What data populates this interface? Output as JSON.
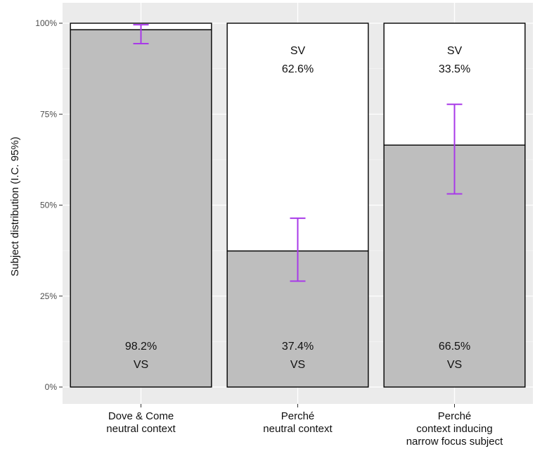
{
  "chart_data": {
    "type": "bar",
    "stacked": true,
    "ylabel": "Subject distribution (I.C. 95%)",
    "xlabel": "",
    "ylim": [
      0,
      100
    ],
    "yticks": [
      "0%",
      "25%",
      "50%",
      "75%",
      "100%"
    ],
    "ytick_values": [
      0,
      25,
      50,
      75,
      100
    ],
    "grid": true,
    "categories": [
      [
        "Dove & Come",
        "neutral context"
      ],
      [
        "Perché",
        "neutral context"
      ],
      [
        "Perché",
        "context inducing",
        "narrow focus subject"
      ]
    ],
    "series": [
      {
        "name": "VS",
        "color": "#bebebe",
        "values": [
          98.2,
          37.4,
          66.5
        ],
        "labels": [
          "98.2%",
          "37.4%",
          "66.5%"
        ]
      },
      {
        "name": "SV",
        "color": "#ffffff",
        "values": [
          1.8,
          62.6,
          33.5
        ],
        "labels": [
          "",
          "62.6%",
          "33.5%"
        ]
      }
    ],
    "error_bars": {
      "color": "#a839e8",
      "lower": [
        94.4,
        29.1,
        53.1
      ],
      "upper": [
        99.6,
        46.4,
        77.7
      ]
    }
  }
}
